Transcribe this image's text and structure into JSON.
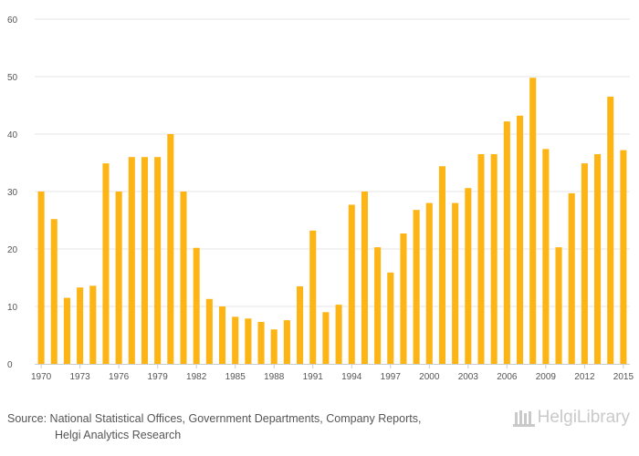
{
  "chart_data": {
    "type": "bar",
    "title": "",
    "xlabel": "",
    "ylabel": "",
    "ylim": [
      0,
      60
    ],
    "yticks": [
      0,
      10,
      20,
      30,
      40,
      50,
      60
    ],
    "grid": true,
    "bar_color": "#FDB515",
    "categories": [
      "1970",
      "1971",
      "1972",
      "1973",
      "1974",
      "1975",
      "1976",
      "1977",
      "1978",
      "1979",
      "1980",
      "1981",
      "1982",
      "1983",
      "1984",
      "1985",
      "1986",
      "1987",
      "1988",
      "1989",
      "1990",
      "1991",
      "1992",
      "1993",
      "1994",
      "1995",
      "1996",
      "1997",
      "1998",
      "1999",
      "2000",
      "2001",
      "2002",
      "2003",
      "2004",
      "2005",
      "2006",
      "2007",
      "2008",
      "2009",
      "2010",
      "2011",
      "2012",
      "2013",
      "2014",
      "2015"
    ],
    "tick_labels": [
      "1970",
      "1973",
      "1976",
      "1979",
      "1982",
      "1985",
      "1988",
      "1991",
      "1994",
      "1997",
      "2000",
      "2003",
      "2006",
      "2009",
      "2012",
      "2015"
    ],
    "values": [
      30,
      25.2,
      11.5,
      13.3,
      13.6,
      34.9,
      30,
      36,
      36,
      36,
      40,
      30,
      20.2,
      11.3,
      10,
      8.2,
      7.9,
      7.3,
      6,
      7.6,
      13.5,
      23.2,
      9,
      10.3,
      27.7,
      30,
      20.3,
      15.9,
      22.7,
      26.8,
      28,
      34.4,
      28,
      30.6,
      36.5,
      36.5,
      42.2,
      43.2,
      49.8,
      37.4,
      20.3,
      29.7,
      34.9,
      36.5,
      46.5,
      37.2
    ]
  },
  "footer": {
    "source_line1": "Source: National Statistical Offices, Government Departments, Company Reports,",
    "source_line2": "Helgi Analytics Research",
    "logo_text": "HelgiLibrary"
  },
  "colors": {
    "bar": "#FDB515",
    "grid": "#e6e6e6",
    "axis": "#cccccc",
    "logo": "#c9c9c9"
  }
}
